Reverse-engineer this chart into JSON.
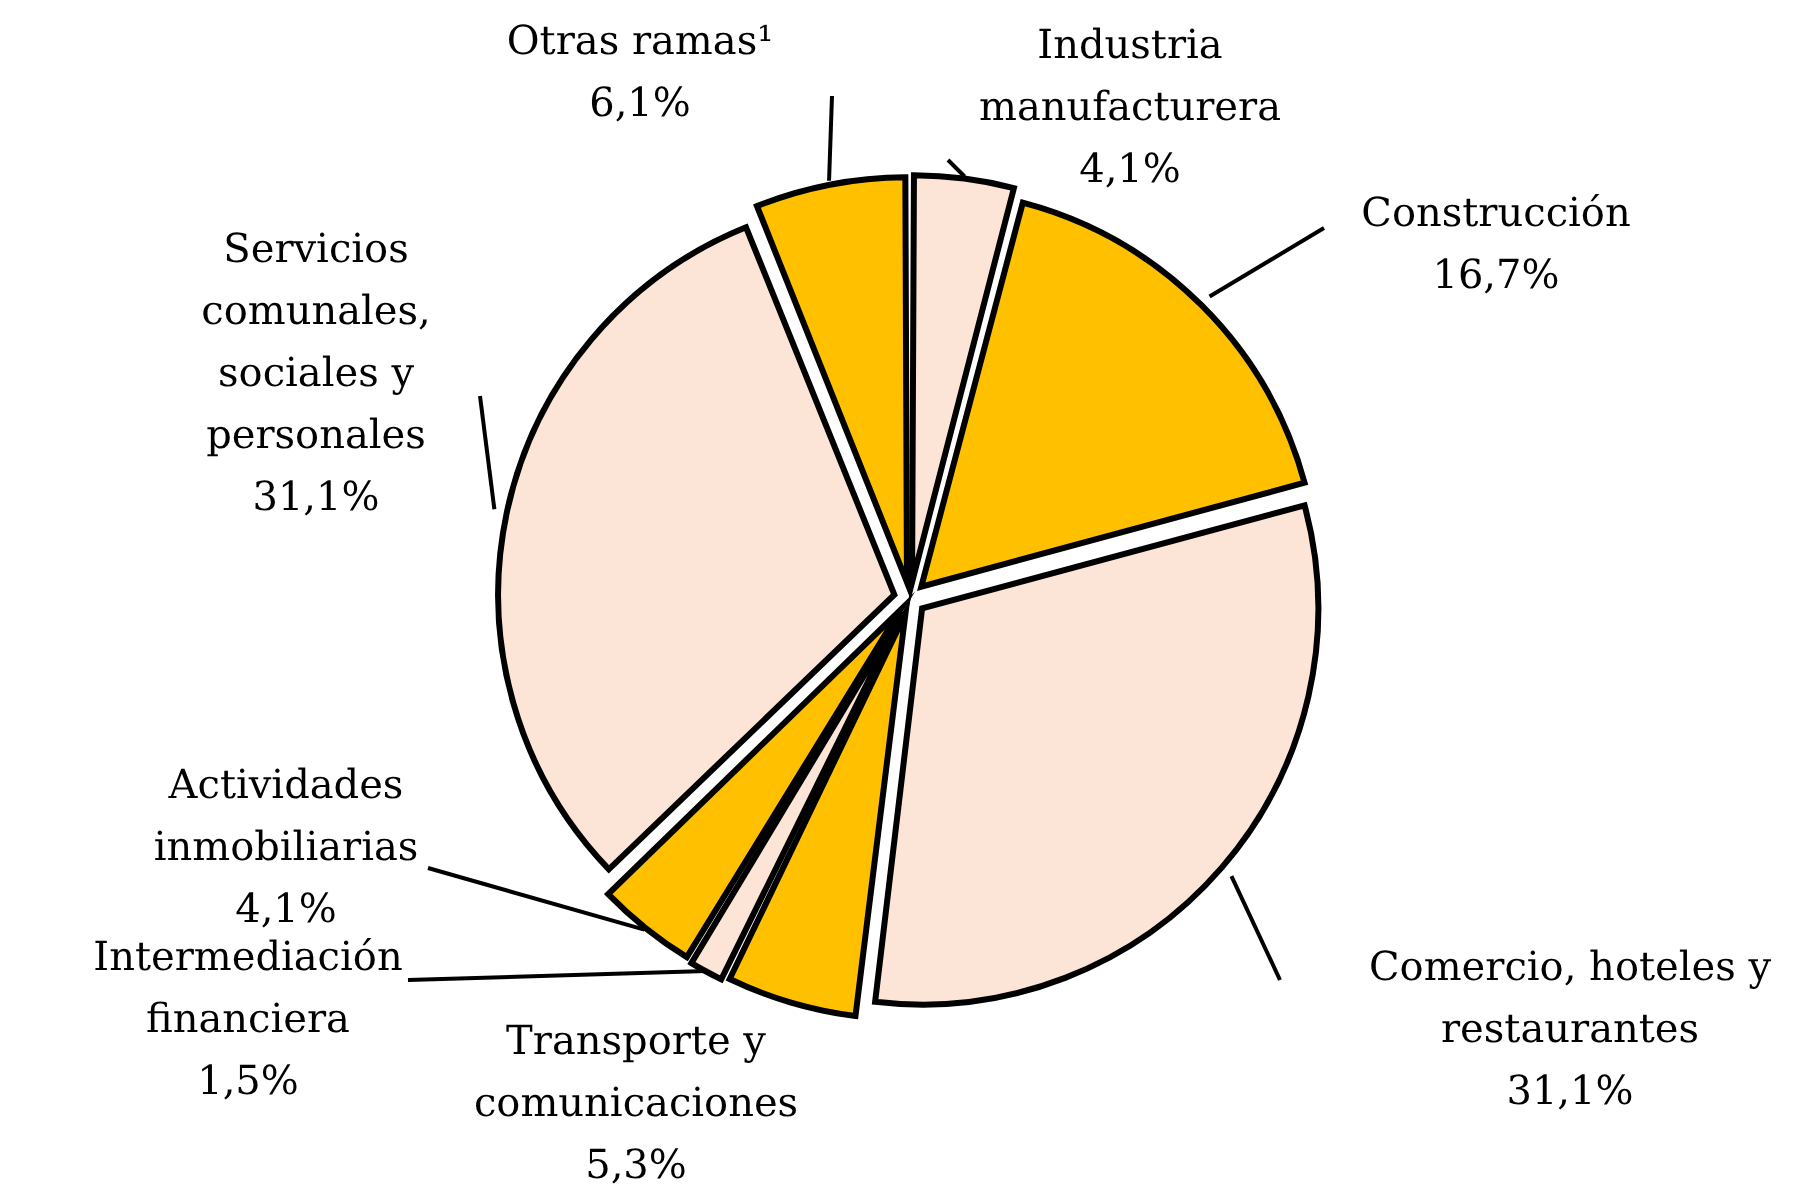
{
  "chart_data": {
    "type": "pie",
    "categories": [
      "Industria manufacturera",
      "Construcción",
      "Comercio, hoteles y restaurantes",
      "Transporte y comunicaciones",
      "Intermediación financiera",
      "Actividades inmobiliarias",
      "Servicios comunales, sociales y personales",
      "Otras ramas¹"
    ],
    "values": [
      4.1,
      16.7,
      31.1,
      5.3,
      1.5,
      4.1,
      31.1,
      6.1
    ],
    "colors": [
      "#fce4d6",
      "#ffc000",
      "#fce4d6",
      "#ffc000",
      "#fce4d6",
      "#ffc000",
      "#fce4d6",
      "#ffc000"
    ],
    "value_labels": [
      "4,1%",
      "16,7%",
      "31,1%",
      "5,3%",
      "1,5%",
      "4,1%",
      "31,1%",
      "6,1%"
    ]
  }
}
